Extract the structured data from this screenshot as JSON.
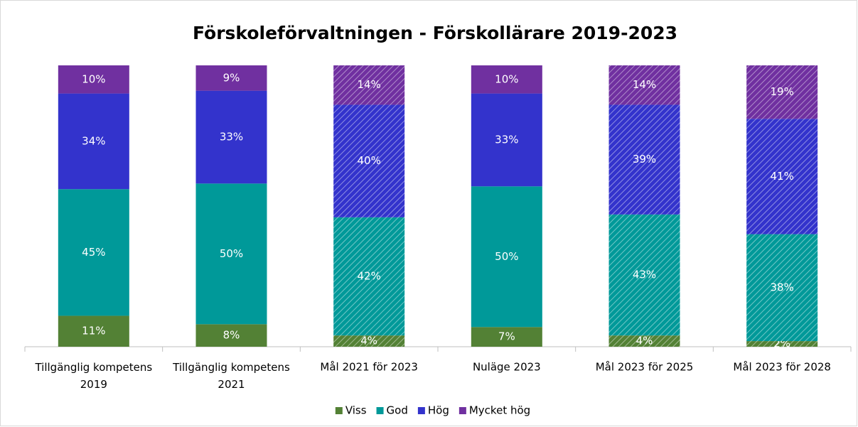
{
  "chart_data": {
    "type": "stacked_bar",
    "title": "Förskoleförvaltningen - Förskollärare 2019-2023",
    "categories": [
      "Tillgänglig kompetens 2019",
      "Tillgänglig kompetens 2021",
      "Mål 2021 för 2023",
      "Nuläge 2023",
      "Mål 2023 för 2025",
      "Mål 2023 för 2028"
    ],
    "hatched": [
      false,
      false,
      true,
      false,
      true,
      true
    ],
    "ylim": [
      0,
      100
    ],
    "legend": "bottom",
    "series": [
      {
        "name": "Viss",
        "color": "#538135",
        "values": [
          11,
          8,
          4,
          7,
          4,
          2
        ],
        "value_labels": [
          "11%",
          "8%",
          "4%",
          "7%",
          "4%",
          "2%"
        ]
      },
      {
        "name": "God",
        "color": "#009999",
        "values": [
          45,
          50,
          42,
          50,
          43,
          38
        ],
        "value_labels": [
          "45%",
          "50%",
          "42%",
          "50%",
          "43%",
          "38%"
        ]
      },
      {
        "name": "Hög",
        "color": "#3333cc",
        "values": [
          34,
          33,
          40,
          33,
          39,
          41
        ],
        "value_labels": [
          "34%",
          "33%",
          "40%",
          "33%",
          "39%",
          "41%"
        ]
      },
      {
        "name": "Mycket hög",
        "color": "#7030a0",
        "values": [
          10,
          9,
          14,
          10,
          14,
          19
        ],
        "value_labels": [
          "10%",
          "9%",
          "14%",
          "10%",
          "14%",
          "19%"
        ]
      }
    ]
  }
}
